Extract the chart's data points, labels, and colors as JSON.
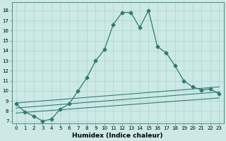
{
  "xlabel": "Humidex (Indice chaleur)",
  "background_color": "#cce9e5",
  "grid_color": "#aad4d0",
  "line_color": "#2d7a6e",
  "xlim": [
    -0.5,
    23.5
  ],
  "ylim": [
    6.8,
    18.8
  ],
  "yticks": [
    7,
    8,
    9,
    10,
    11,
    12,
    13,
    14,
    15,
    16,
    17,
    18
  ],
  "xticks": [
    0,
    1,
    2,
    3,
    4,
    5,
    6,
    7,
    8,
    9,
    10,
    11,
    12,
    13,
    14,
    15,
    16,
    17,
    18,
    19,
    20,
    21,
    22,
    23
  ],
  "main_series": {
    "x": [
      0,
      1,
      2,
      3,
      4,
      5,
      6,
      7,
      8,
      9,
      10,
      11,
      12,
      13,
      14,
      15,
      16,
      17,
      18,
      19,
      20,
      21,
      22,
      23
    ],
    "y": [
      8.7,
      7.9,
      7.5,
      7.0,
      7.2,
      8.2,
      8.7,
      10.0,
      11.3,
      13.0,
      14.1,
      16.6,
      17.8,
      17.8,
      16.3,
      18.0,
      14.4,
      13.8,
      12.5,
      11.0,
      10.4,
      10.1,
      10.2,
      9.7
    ]
  },
  "trend_lines": [
    {
      "x": [
        0,
        23
      ],
      "y": [
        7.8,
        9.3
      ]
    },
    {
      "x": [
        0,
        23
      ],
      "y": [
        8.3,
        9.9
      ]
    },
    {
      "x": [
        0,
        23
      ],
      "y": [
        8.8,
        10.4
      ]
    }
  ],
  "tick_fontsize": 5.0,
  "xlabel_fontsize": 6.5,
  "marker": "D",
  "markersize": 2.5,
  "linewidth": 0.9
}
